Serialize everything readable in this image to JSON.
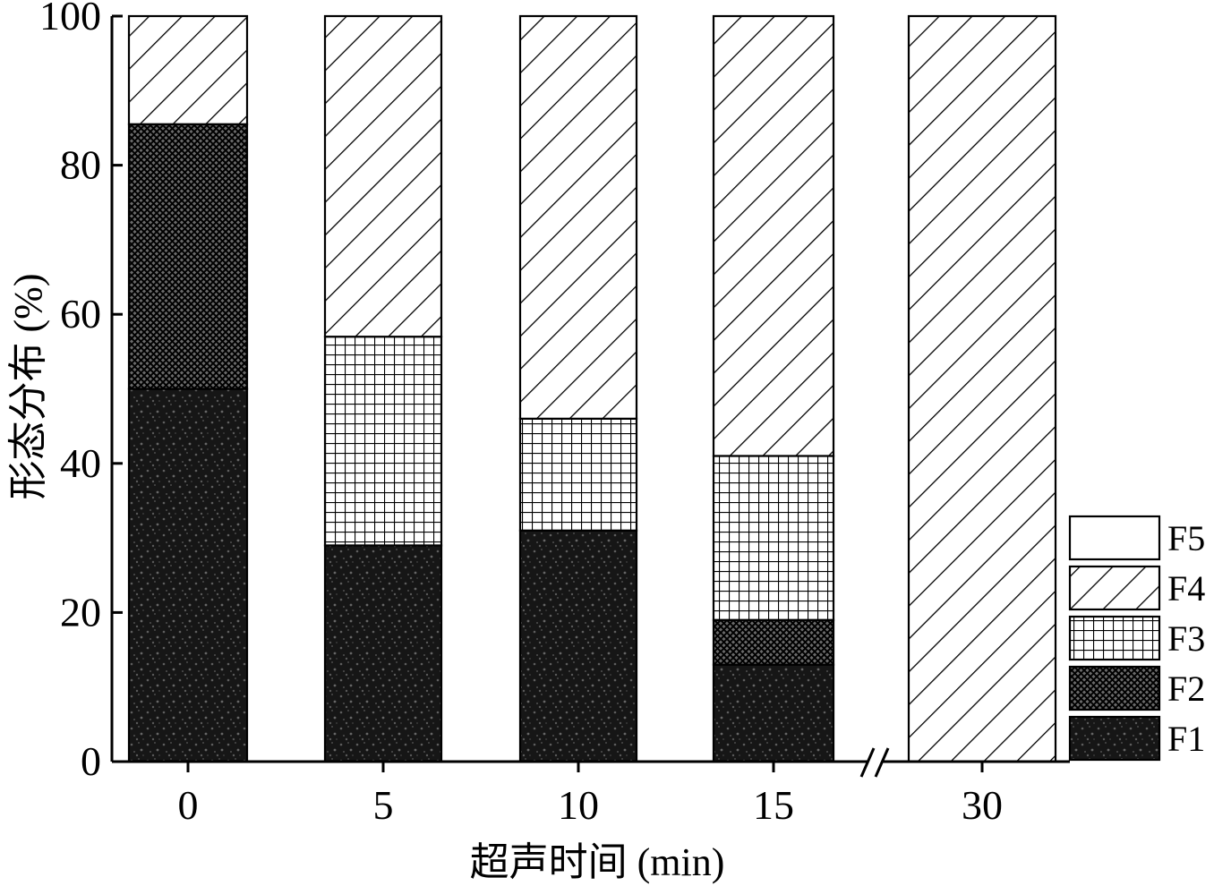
{
  "chart_data": {
    "type": "bar",
    "stacked": true,
    "categories": [
      "0",
      "5",
      "10",
      "15",
      "30"
    ],
    "series": [
      {
        "name": "F1",
        "values": [
          50,
          29,
          31,
          13,
          0
        ],
        "pattern": "dark-speckle"
      },
      {
        "name": "F2",
        "values": [
          35.5,
          0,
          0,
          6,
          0
        ],
        "pattern": "dense-crosshatch"
      },
      {
        "name": "F3",
        "values": [
          0,
          28,
          15,
          22,
          0
        ],
        "pattern": "grid"
      },
      {
        "name": "F4",
        "values": [
          14.5,
          43,
          54,
          59,
          100
        ],
        "pattern": "diagonal-hatch"
      },
      {
        "name": "F5",
        "values": [
          0,
          0,
          0,
          0,
          0
        ],
        "pattern": "blank"
      }
    ],
    "xlabel": "超声时间 (min)",
    "ylabel": "形态分布 (%)",
    "ylim": [
      0,
      100
    ],
    "yticks": [
      "0",
      "20",
      "40",
      "60",
      "80",
      "100"
    ],
    "axis_break_between": [
      "15",
      "30"
    ],
    "legend_position": "right",
    "legend_order": [
      "F5",
      "F4",
      "F3",
      "F2",
      "F1"
    ],
    "grid": false
  }
}
